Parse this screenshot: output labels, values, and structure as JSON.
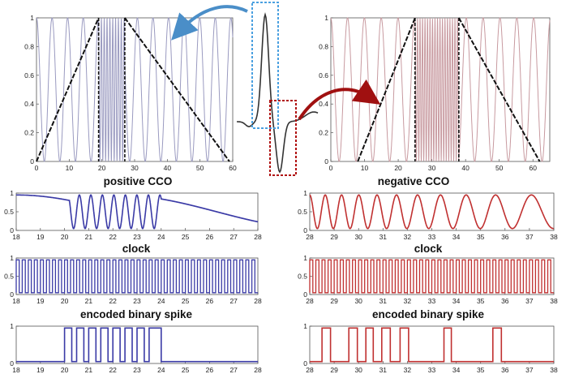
{
  "captions": {
    "pos_cco": "positive CCO",
    "neg_cco": "negative CCO",
    "clock_left": "clock",
    "clock_right": "clock",
    "spike_left": "encoded binary spike",
    "spike_right": "encoded binary spike"
  },
  "colors": {
    "blue": "#3a3aa6",
    "red": "#c03030",
    "arrow_blue": "#4a8ec8",
    "arrow_red": "#a01010",
    "box_blue": "#4aa0e0",
    "box_red": "#b01010",
    "sine_blue": "#9a9ac0",
    "sine_red": "#c89aa0"
  },
  "chart_data": [
    {
      "id": "positive-cco",
      "type": "line",
      "xlim": [
        0,
        60
      ],
      "ylim": [
        0,
        1
      ],
      "xticks": [
        "0",
        "10",
        "20",
        "30",
        "40",
        "50",
        "60"
      ],
      "yticks": [
        "0",
        "0.2",
        "0.4",
        "0.6",
        "0.8",
        "1"
      ],
      "series": [
        {
          "values_desc": "sinusoid"
        },
        {
          "x": [
            0,
            19
          ],
          "y": [
            0,
            1
          ]
        },
        {
          "x": [
            27,
            59
          ],
          "y": [
            1,
            0
          ]
        }
      ],
      "dashed_x": [
        19,
        27
      ]
    },
    {
      "id": "negative-cco",
      "type": "line",
      "xlim": [
        0,
        65
      ],
      "ylim": [
        0,
        1
      ],
      "xticks": [
        "0",
        "10",
        "20",
        "30",
        "40",
        "50",
        "60"
      ],
      "yticks": [
        "0",
        "0.2",
        "0.4",
        "0.6",
        "0.8",
        "1"
      ],
      "series": [
        {
          "x": [
            8,
            25
          ],
          "y": [
            0,
            1
          ]
        },
        {
          "x": [
            38,
            62
          ],
          "y": [
            1,
            0
          ]
        }
      ],
      "dashed_x": [
        25,
        38
      ]
    },
    {
      "id": "positive-clock",
      "type": "line",
      "xlim": [
        18,
        28
      ],
      "ylim": [
        0,
        1
      ],
      "xticks": [
        "18",
        "19",
        "20",
        "21",
        "22",
        "23",
        "24",
        "25",
        "26",
        "27",
        "28"
      ],
      "yticks": [
        "0",
        "0.5",
        "1"
      ]
    },
    {
      "id": "negative-clock",
      "type": "line",
      "xlim": [
        28,
        38
      ],
      "ylim": [
        0,
        1
      ],
      "xticks": [
        "28",
        "29",
        "30",
        "31",
        "32",
        "33",
        "34",
        "35",
        "36",
        "37",
        "38"
      ],
      "yticks": [
        "0",
        "0.5",
        "1"
      ]
    },
    {
      "id": "positive-clock-square",
      "type": "line",
      "xlim": [
        18,
        28
      ],
      "ylim": [
        0,
        1
      ],
      "xticks": [
        "18",
        "19",
        "20",
        "21",
        "22",
        "23",
        "24",
        "25",
        "26",
        "27",
        "28"
      ],
      "yticks": [
        "0",
        "0.5",
        "1"
      ]
    },
    {
      "id": "negative-clock-square",
      "type": "line",
      "xlim": [
        28,
        38
      ],
      "ylim": [
        0,
        1
      ],
      "xticks": [
        "28",
        "29",
        "30",
        "31",
        "32",
        "33",
        "34",
        "35",
        "36",
        "37",
        "38"
      ],
      "yticks": [
        "0",
        "0.5",
        "1"
      ]
    },
    {
      "id": "positive-spike",
      "type": "line",
      "xlim": [
        18,
        28
      ],
      "ylim": [
        0,
        1
      ],
      "xticks": [
        "18",
        "19",
        "20",
        "21",
        "22",
        "23",
        "24",
        "25",
        "26",
        "27",
        "28"
      ],
      "yticks": [
        "0",
        "1"
      ],
      "pulses": [
        [
          20.0,
          20.3
        ],
        [
          20.5,
          20.8
        ],
        [
          21.0,
          21.3
        ],
        [
          21.5,
          21.8
        ],
        [
          22.0,
          22.3
        ],
        [
          22.5,
          22.8
        ],
        [
          23.0,
          23.3
        ],
        [
          23.5,
          24.0
        ]
      ]
    },
    {
      "id": "negative-spike",
      "type": "line",
      "xlim": [
        28,
        38
      ],
      "ylim": [
        0,
        1
      ],
      "xticks": [
        "28",
        "29",
        "30",
        "31",
        "32",
        "33",
        "34",
        "35",
        "36",
        "37",
        "38"
      ],
      "yticks": [
        "0",
        "1"
      ],
      "pulses": [
        [
          28.5,
          28.85
        ],
        [
          29.6,
          29.95
        ],
        [
          30.3,
          30.6
        ],
        [
          30.95,
          31.3
        ],
        [
          31.7,
          32.05
        ],
        [
          33.5,
          33.8
        ],
        [
          35.5,
          35.85
        ]
      ]
    }
  ]
}
